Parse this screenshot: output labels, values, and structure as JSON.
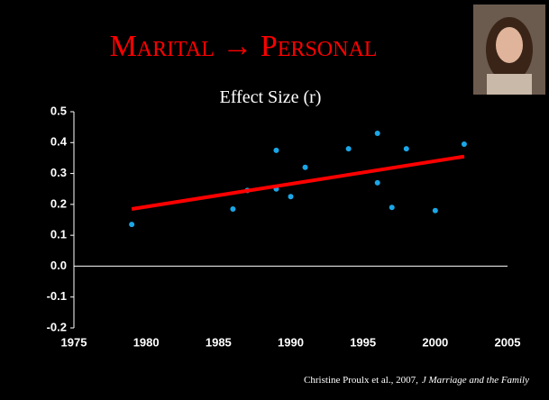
{
  "chart_data": {
    "type": "scatter",
    "title": "Marital → Personal",
    "subtitle": "Effect Size (r)",
    "citation": "Christine Proulx et al., 2007,",
    "journal": "J Marriage and the Family",
    "x": [
      1979,
      1986,
      1987,
      1989,
      1989,
      1990,
      1991,
      1994,
      1996,
      1996,
      1997,
      1998,
      2000,
      2002
    ],
    "values": [
      0.135,
      0.185,
      0.245,
      0.375,
      0.25,
      0.225,
      0.32,
      0.38,
      0.43,
      0.27,
      0.19,
      0.38,
      0.18,
      0.395
    ],
    "color": "#1aa7e8",
    "trend": {
      "x": [
        1979,
        2002
      ],
      "values": [
        0.185,
        0.355
      ],
      "color": "#ff0000"
    },
    "xlim": [
      1975,
      2005
    ],
    "xticks": [
      1975,
      1980,
      1985,
      1990,
      1995,
      2000,
      2005
    ],
    "ylim": [
      -0.2,
      0.5
    ],
    "yticks": [
      0.5,
      0.4,
      0.3,
      0.2,
      0.1,
      {
        "value": 0,
        "label": "0.0"
      },
      -0.1,
      -0.2
    ]
  }
}
